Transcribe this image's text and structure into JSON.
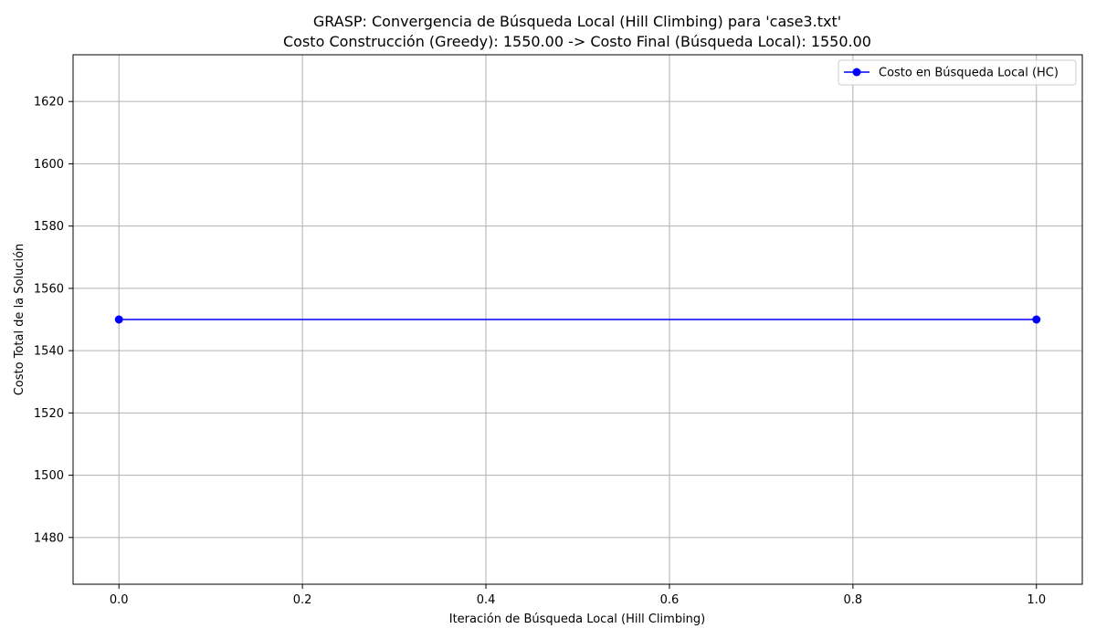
{
  "chart_data": {
    "type": "line",
    "title": "GRASP: Convergencia de Búsqueda Local (Hill Climbing) para 'case3.txt'",
    "subtitle": "Costo Construcción (Greedy): 1550.00 -> Costo Final (Búsqueda Local): 1550.00",
    "xlabel": "Iteración de Búsqueda Local (Hill Climbing)",
    "ylabel": "Costo Total de la Solución",
    "xlim": [
      -0.05,
      1.05
    ],
    "ylim": [
      1465,
      1635
    ],
    "xticks": [
      0.0,
      0.2,
      0.4,
      0.6,
      0.8,
      1.0
    ],
    "xtick_labels": [
      "0.0",
      "0.2",
      "0.4",
      "0.6",
      "0.8",
      "1.0"
    ],
    "yticks": [
      1480,
      1500,
      1520,
      1540,
      1560,
      1580,
      1600,
      1620
    ],
    "ytick_labels": [
      "1480",
      "1500",
      "1520",
      "1540",
      "1560",
      "1580",
      "1600",
      "1620"
    ],
    "grid": true,
    "legend_position": "top-right",
    "series": [
      {
        "name": "Costo en Búsqueda Local (HC)",
        "color": "#0000ff",
        "marker": "circle",
        "x": [
          0,
          1
        ],
        "y": [
          1550,
          1550
        ]
      }
    ]
  }
}
